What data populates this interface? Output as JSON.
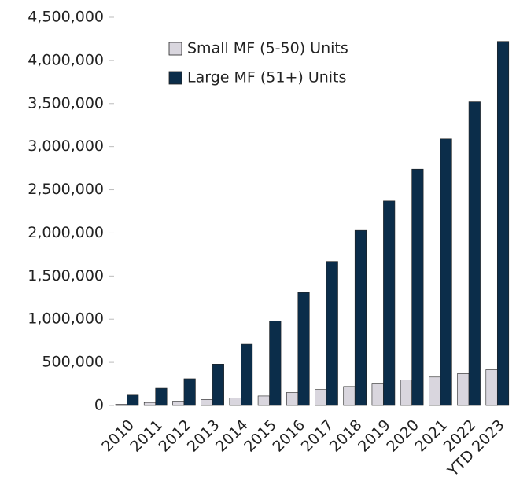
{
  "chart_data": {
    "type": "bar",
    "categories": [
      "2010",
      "2011",
      "2012",
      "2013",
      "2014",
      "2015",
      "2016",
      "2017",
      "2018",
      "2019",
      "2020",
      "2021",
      "2022",
      "YTD 2023"
    ],
    "series": [
      {
        "name": "Small MF (5-50) Units",
        "color": "#d9d6de",
        "values": [
          15000,
          35000,
          50000,
          70000,
          85000,
          110000,
          150000,
          185000,
          220000,
          250000,
          295000,
          330000,
          370000,
          415000
        ]
      },
      {
        "name": "Large MF (51+) Units",
        "color": "#0b2d4a",
        "values": [
          120000,
          200000,
          310000,
          480000,
          710000,
          980000,
          1310000,
          1670000,
          2030000,
          2370000,
          2740000,
          3090000,
          3520000,
          4220000
        ]
      }
    ],
    "ylim": [
      0,
      4500000
    ],
    "yticks": [
      0,
      {
        "value": 500000,
        "label": "500,000"
      },
      {
        "value": 1000000,
        "label": "1,000,000"
      },
      {
        "value": 1500000,
        "label": "1,500,000"
      },
      {
        "value": 2000000,
        "label": "2,000,000"
      },
      {
        "value": 2500000,
        "label": "2,500,000"
      },
      {
        "value": 3000000,
        "label": "3,000,000"
      },
      {
        "value": 3500000,
        "label": "3,500,000"
      },
      {
        "value": 4000000,
        "label": "4,000,000"
      },
      {
        "value": 4500000,
        "label": "4,500,000"
      }
    ],
    "legend": "top-left"
  }
}
